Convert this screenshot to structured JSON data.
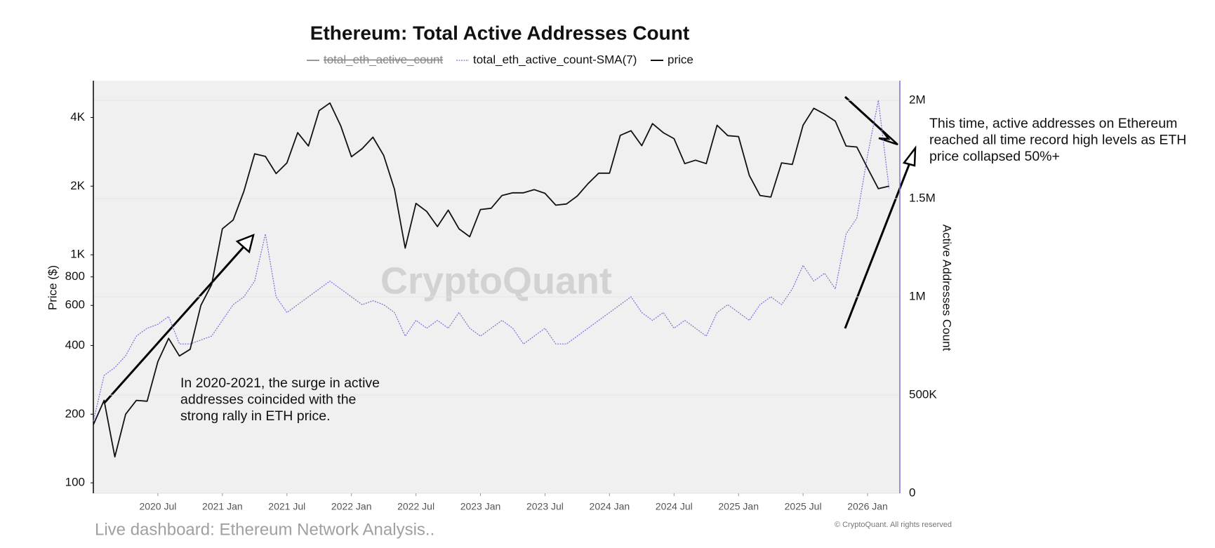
{
  "chart_data": {
    "type": "line",
    "title": "Ethereum: Total Active Addresses Count",
    "ylabel": "Price ($)",
    "y2label": "Active Addresses Count",
    "yscale": "log",
    "grid": true,
    "x": [
      "2020-01",
      "2020-02",
      "2020-03",
      "2020-04",
      "2020-05",
      "2020-06",
      "2020-07",
      "2020-08",
      "2020-09",
      "2020-10",
      "2020-11",
      "2020-12",
      "2021-01",
      "2021-02",
      "2021-03",
      "2021-04",
      "2021-05",
      "2021-06",
      "2021-07",
      "2021-08",
      "2021-09",
      "2021-10",
      "2021-11",
      "2021-12",
      "2022-01",
      "2022-02",
      "2022-03",
      "2022-04",
      "2022-05",
      "2022-06",
      "2022-07",
      "2022-08",
      "2022-09",
      "2022-10",
      "2022-11",
      "2022-12",
      "2023-01",
      "2023-02",
      "2023-03",
      "2023-04",
      "2023-05",
      "2023-06",
      "2023-07",
      "2023-08",
      "2023-09",
      "2023-10",
      "2023-11",
      "2023-12",
      "2024-01",
      "2024-02",
      "2024-03",
      "2024-04",
      "2024-05",
      "2024-06",
      "2024-07",
      "2024-08",
      "2024-09",
      "2024-10",
      "2024-11",
      "2024-12",
      "2025-01",
      "2025-02",
      "2025-03",
      "2025-04",
      "2025-05",
      "2025-06",
      "2025-07",
      "2025-08",
      "2025-09",
      "2025-10",
      "2025-11",
      "2025-12",
      "2026-01",
      "2026-02",
      "2026-03"
    ],
    "series": [
      {
        "name": "total_eth_active_count",
        "color": "#999999",
        "hidden": true
      },
      {
        "name": "total_eth_active_count-SMA(7)",
        "color": "#7b6fd9",
        "dashed": true,
        "axis": "y2",
        "values": [
          366000,
          600000,
          640000,
          700000,
          800000,
          840000,
          860000,
          900000,
          760000,
          760000,
          780000,
          800000,
          880000,
          960000,
          1000000,
          1080000,
          1320000,
          1000000,
          920000,
          960000,
          1000000,
          1040000,
          1080000,
          1040000,
          1000000,
          960000,
          980000,
          960000,
          920000,
          800000,
          880000,
          840000,
          880000,
          840000,
          920000,
          840000,
          800000,
          840000,
          880000,
          840000,
          760000,
          800000,
          840000,
          760000,
          760000,
          800000,
          840000,
          880000,
          920000,
          960000,
          1000000,
          920000,
          880000,
          920000,
          840000,
          880000,
          840000,
          800000,
          920000,
          960000,
          920000,
          880000,
          960000,
          1000000,
          960000,
          1040000,
          1160000,
          1080000,
          1120000,
          1040000,
          1320000,
          1400000,
          1720000,
          2000000,
          1550000
        ]
      },
      {
        "name": "price",
        "color": "#111111",
        "axis": "y",
        "values": [
          180,
          230,
          130,
          200,
          230,
          228,
          340,
          430,
          360,
          385,
          600,
          740,
          1300,
          1420,
          1900,
          2770,
          2700,
          2270,
          2530,
          3430,
          3000,
          4290,
          4630,
          3680,
          2690,
          2920,
          3280,
          2730,
          1940,
          1070,
          1680,
          1550,
          1330,
          1570,
          1300,
          1200,
          1580,
          1600,
          1820,
          1870,
          1870,
          1930,
          1860,
          1650,
          1670,
          1810,
          2050,
          2280,
          2280,
          3340,
          3500,
          3010,
          3760,
          3430,
          3230,
          2510,
          2600,
          2510,
          3700,
          3330,
          3300,
          2230,
          1820,
          1790,
          2530,
          2490,
          3700,
          4390,
          4140,
          3850,
          3000,
          2970,
          2400,
          1950,
          2000
        ]
      }
    ],
    "xlim": [
      "2020-01",
      "2026-04"
    ],
    "xticks": [
      {
        "value": "2020-07",
        "label": "2020 Jul"
      },
      {
        "value": "2021-01",
        "label": "2021 Jan"
      },
      {
        "value": "2021-07",
        "label": "2021 Jul"
      },
      {
        "value": "2022-01",
        "label": "2022 Jan"
      },
      {
        "value": "2022-07",
        "label": "2022 Jul"
      },
      {
        "value": "2023-01",
        "label": "2023 Jan"
      },
      {
        "value": "2023-07",
        "label": "2023 Jul"
      },
      {
        "value": "2024-01",
        "label": "2024 Jan"
      },
      {
        "value": "2024-07",
        "label": "2024 Jul"
      },
      {
        "value": "2025-01",
        "label": "2025 Jan"
      },
      {
        "value": "2025-07",
        "label": "2025 Jul"
      },
      {
        "value": "2026-01",
        "label": "2026 Jan"
      }
    ],
    "ylim": [
      90,
      5800
    ],
    "yticks": [
      100,
      200,
      400,
      600,
      800,
      {
        "value": 1000,
        "label": "1K"
      },
      {
        "value": 2000,
        "label": "2K"
      },
      {
        "value": 4000,
        "label": "4K"
      }
    ],
    "y2lim": [
      0,
      2100000
    ],
    "y2ticks": [
      0,
      {
        "value": 500000,
        "label": "500K"
      },
      {
        "value": 1000000,
        "label": "1M"
      },
      {
        "value": 1500000,
        "label": "1.5M"
      },
      {
        "value": 2000000,
        "label": "2M"
      }
    ],
    "annotations": [
      [
        "In 2020-2021, the surge in active",
        "addresses coincided with the",
        "strong rally in ETH price."
      ],
      [
        "This time, active addresses on Ethereum",
        "reached all time record high levels as ETH",
        "price collapsed 50%+"
      ]
    ],
    "watermark": "CryptoQuant",
    "footer": "Live dashboard: Ethereum Network Analysis..",
    "copyright": "© CryptoQuant. All rights reserved"
  }
}
